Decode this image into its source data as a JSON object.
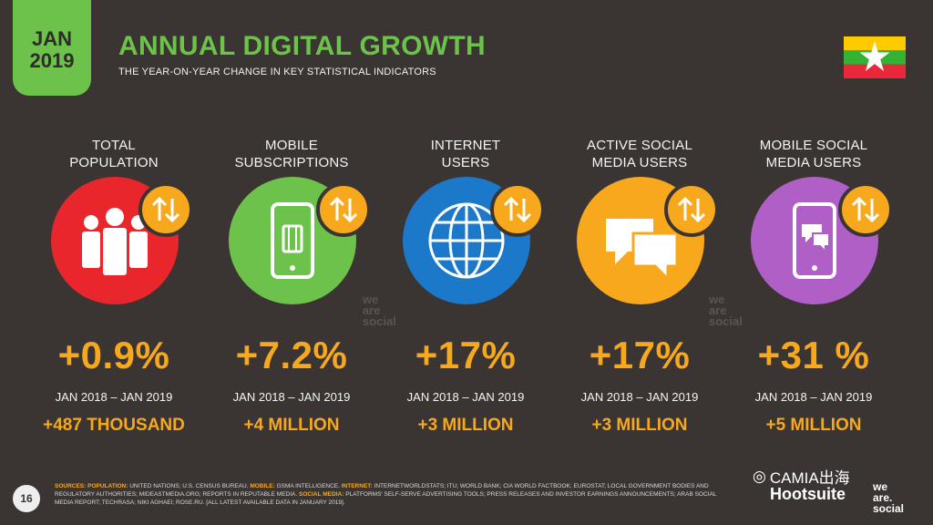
{
  "header": {
    "date_line1": "JAN",
    "date_line2": "2019",
    "title": "ANNUAL DIGITAL GROWTH",
    "subtitle": "THE YEAR-ON-YEAR CHANGE IN KEY STATISTICAL INDICATORS",
    "flag_icon": "myanmar-flag-icon"
  },
  "colors": {
    "accent_green": "#6cc24a",
    "accent_orange": "#f7a81c",
    "red": "#e8262b",
    "green": "#6cc24a",
    "blue": "#1c78c8",
    "orange": "#f7a81c",
    "purple": "#b05fc7"
  },
  "metrics": [
    {
      "label1": "TOTAL",
      "label2": "POPULATION",
      "pct": "+0.9%",
      "range": "JAN 2018 – JAN 2019",
      "abs": "+487 THOUSAND",
      "icon": "people-icon"
    },
    {
      "label1": "MOBILE",
      "label2": "SUBSCRIPTIONS",
      "pct": "+7.2%",
      "range": "JAN 2018 – JAN 2019",
      "abs": "+4 MILLION",
      "icon": "mobile-sim-icon"
    },
    {
      "label1": "INTERNET",
      "label2": "USERS",
      "pct": "+17%",
      "range": "JAN 2018 – JAN 2019",
      "abs": "+3 MILLION",
      "icon": "globe-icon"
    },
    {
      "label1": "ACTIVE SOCIAL",
      "label2": "MEDIA USERS",
      "pct": "+17%",
      "range": "JAN 2018 – JAN 2019",
      "abs": "+3 MILLION",
      "icon": "chat-bubbles-icon"
    },
    {
      "label1": "MOBILE SOCIAL",
      "label2": "MEDIA USERS",
      "pct": "+31 %",
      "range": "JAN 2018 – JAN 2019",
      "abs": "+5 MILLION",
      "icon": "mobile-chat-icon"
    }
  ],
  "watermark": {
    "line1": "we",
    "line2": "are",
    "line3": "social"
  },
  "footer": {
    "page_number": "16",
    "sources_label": "SOURCES:",
    "pop_label": "POPULATION:",
    "pop_text": "UNITED NATIONS; U.S. CENSUS BUREAU.",
    "mobile_label": "MOBILE:",
    "mobile_text": "GSMA INTELLIGENCE.",
    "internet_label": "INTERNET:",
    "internet_text": "INTERNETWORLDSTATS; ITU; WORLD BANK; CIA WORLD FACTBOOK; EUROSTAT; LOCAL GOVERNMENT BODIES AND REGULATORY AUTHORITIES; MIDEASTMEDIA.ORG; REPORTS IN REPUTABLE MEDIA.",
    "social_label": "SOCIAL MEDIA:",
    "social_text": "PLATFORMS' SELF-SERVE ADVERTISING TOOLS; PRESS RELEASES AND INVESTOR EARNINGS ANNOUNCEMENTS; ARAB SOCIAL MEDIA REPORT; TECHRASA; NIKI AGHAEI; ROSE.RU. [ALL LATEST AVAILABLE DATA IN JANUARY 2019].",
    "brand_hootsuite": "Hootsuite",
    "brand_we": "we",
    "brand_are": "are.",
    "brand_social": "social",
    "camia": "CAMIA出海"
  }
}
